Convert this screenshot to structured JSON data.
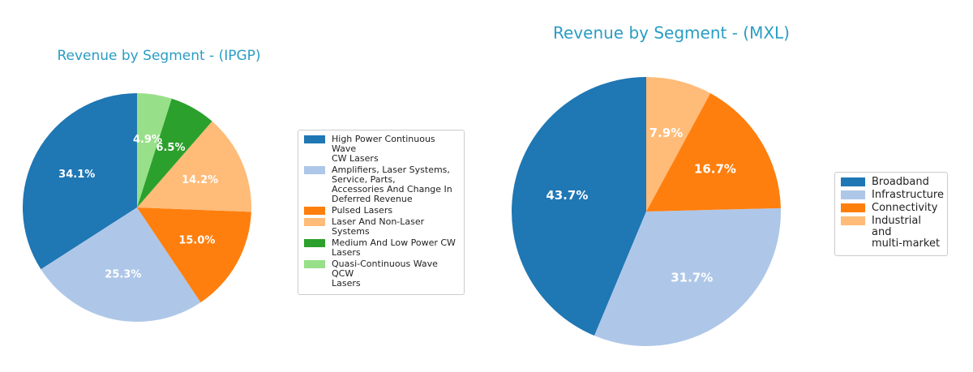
{
  "chart_data": [
    {
      "type": "pie",
      "title": "Revenue by Segment - (IPGP)",
      "categories": [
        "High Power Continuous Wave\nCW Lasers",
        "Amplifiers, Laser Systems,\nService, Parts,\nAccessories And Change In\nDeferred Revenue",
        "Pulsed Lasers",
        "Laser And Non-Laser\nSystems",
        "Medium And Low Power CW\nLasers",
        "Quasi-Continuous Wave QCW\nLasers"
      ],
      "values": [
        34.1,
        25.3,
        15.0,
        14.2,
        6.5,
        4.9
      ],
      "value_labels": [
        "34.1%",
        "25.3%",
        "15.0%",
        "14.2%",
        "6.5%",
        "4.9%"
      ],
      "colors": [
        "#1f77b4",
        "#aec7e8",
        "#ff7f0e",
        "#ffbb78",
        "#2ca02c",
        "#98df8a"
      ],
      "legend": "right"
    },
    {
      "type": "pie",
      "title": "Revenue by Segment - (MXL)",
      "categories": [
        "Broadband",
        "Infrastructure",
        "Connectivity",
        "Industrial and\nmulti-market"
      ],
      "values": [
        43.7,
        31.7,
        16.7,
        7.9
      ],
      "value_labels": [
        "43.7%",
        "31.7%",
        "16.7%",
        "7.9%"
      ],
      "colors": [
        "#1f77b4",
        "#aec7e8",
        "#ff7f0e",
        "#ffbb78"
      ],
      "legend": "right"
    }
  ]
}
